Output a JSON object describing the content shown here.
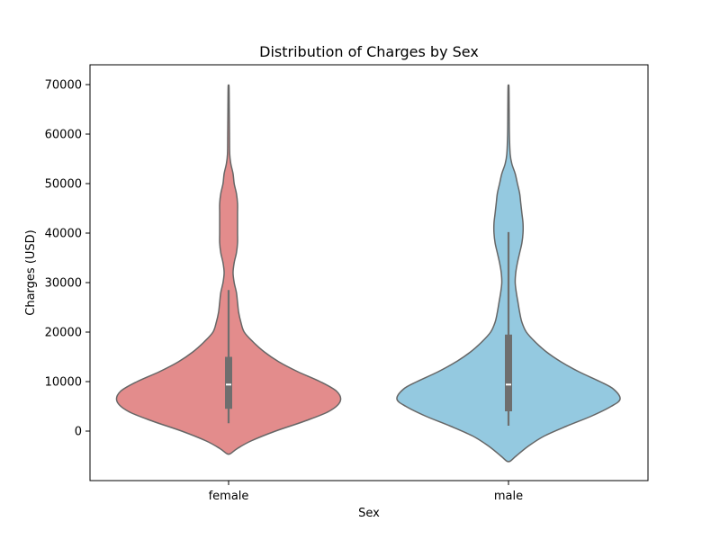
{
  "chart_data": {
    "type": "violin",
    "title": "Distribution of Charges by Sex",
    "xlabel": "Sex",
    "ylabel": "Charges (USD)",
    "categories": [
      "female",
      "male"
    ],
    "ylim": [
      -10000,
      74000
    ],
    "yticks": [
      0,
      10000,
      20000,
      30000,
      40000,
      50000,
      60000,
      70000
    ],
    "ytick_labels": [
      "0",
      "10000",
      "20000",
      "30000",
      "40000",
      "50000",
      "60000",
      "70000"
    ],
    "grid": false,
    "legend": "none",
    "colors": {
      "female": "#e38c8c",
      "male": "#94c9e0",
      "outline": "#666666",
      "box": "#6e6e6e",
      "median": "#ffffff"
    },
    "series": [
      {
        "name": "female",
        "box": {
          "min": 1600,
          "q1": 4500,
          "median": 9400,
          "q3": 15000,
          "max": 28500
        },
        "density": [
          [
            -4500,
            0.02
          ],
          [
            -3500,
            0.08
          ],
          [
            -2000,
            0.2
          ],
          [
            0,
            0.42
          ],
          [
            2000,
            0.68
          ],
          [
            4000,
            0.9
          ],
          [
            6000,
            1.0
          ],
          [
            8000,
            0.97
          ],
          [
            10000,
            0.82
          ],
          [
            12000,
            0.62
          ],
          [
            14000,
            0.45
          ],
          [
            16000,
            0.32
          ],
          [
            18000,
            0.22
          ],
          [
            20000,
            0.14
          ],
          [
            22000,
            0.11
          ],
          [
            24000,
            0.09
          ],
          [
            26000,
            0.08
          ],
          [
            28000,
            0.07
          ],
          [
            30000,
            0.05
          ],
          [
            32000,
            0.04
          ],
          [
            34000,
            0.05
          ],
          [
            36000,
            0.07
          ],
          [
            38000,
            0.08
          ],
          [
            40000,
            0.08
          ],
          [
            42000,
            0.08
          ],
          [
            44000,
            0.08
          ],
          [
            46000,
            0.08
          ],
          [
            48000,
            0.07
          ],
          [
            50000,
            0.05
          ],
          [
            52000,
            0.04
          ],
          [
            54000,
            0.02
          ],
          [
            56000,
            0.01
          ],
          [
            60000,
            0.008
          ],
          [
            65000,
            0.006
          ],
          [
            69500,
            0.004
          ]
        ]
      },
      {
        "name": "male",
        "box": {
          "min": 1100,
          "q1": 4000,
          "median": 9400,
          "q3": 19500,
          "max": 40200
        },
        "density": [
          [
            -6000,
            0.02
          ],
          [
            -5000,
            0.07
          ],
          [
            -3000,
            0.18
          ],
          [
            -1000,
            0.32
          ],
          [
            1000,
            0.52
          ],
          [
            3000,
            0.74
          ],
          [
            5000,
            0.92
          ],
          [
            6500,
            1.0
          ],
          [
            8500,
            0.94
          ],
          [
            10000,
            0.82
          ],
          [
            12000,
            0.63
          ],
          [
            14000,
            0.47
          ],
          [
            16000,
            0.34
          ],
          [
            18000,
            0.24
          ],
          [
            20000,
            0.16
          ],
          [
            22000,
            0.12
          ],
          [
            24000,
            0.1
          ],
          [
            26000,
            0.085
          ],
          [
            28000,
            0.07
          ],
          [
            30000,
            0.06
          ],
          [
            32000,
            0.065
          ],
          [
            34000,
            0.08
          ],
          [
            36000,
            0.1
          ],
          [
            38000,
            0.12
          ],
          [
            40000,
            0.13
          ],
          [
            42000,
            0.13
          ],
          [
            44000,
            0.12
          ],
          [
            46000,
            0.11
          ],
          [
            48000,
            0.1
          ],
          [
            50000,
            0.08
          ],
          [
            52000,
            0.06
          ],
          [
            54000,
            0.03
          ],
          [
            56000,
            0.015
          ],
          [
            60000,
            0.008
          ],
          [
            65000,
            0.006
          ],
          [
            69500,
            0.004
          ]
        ]
      }
    ]
  }
}
